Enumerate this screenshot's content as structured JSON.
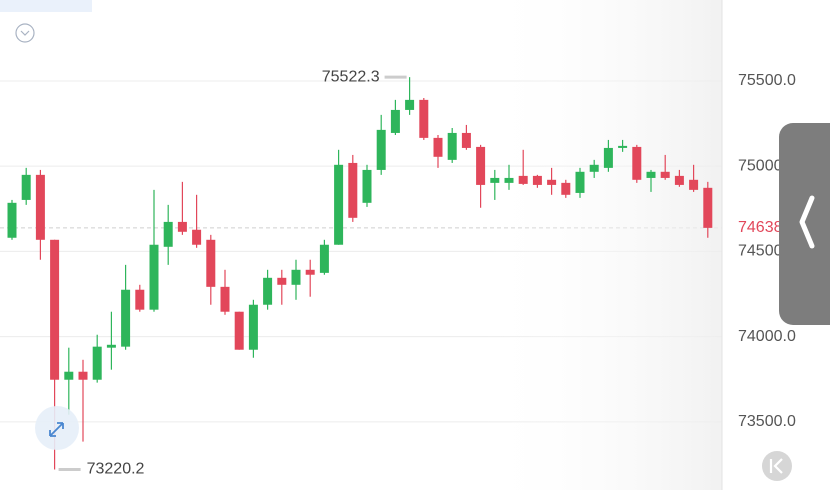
{
  "chart_data": {
    "type": "candlestick",
    "open": [
      74580,
      74802,
      74949,
      74568,
      73747,
      73794,
      73747,
      73935,
      73941,
      74275,
      74158,
      74527,
      74673,
      74627,
      74568,
      74292,
      74146,
      73923,
      74187,
      74345,
      74304,
      74392,
      74374,
      74539,
      75019,
      74785,
      74978,
      75195,
      75330,
      75389,
      75166,
      75037,
      75195,
      75113,
      74902,
      74902,
      74943,
      74943,
      74920,
      74902,
      74843,
      74967,
      74990,
      75107,
      75113,
      74931,
      74967,
      74943,
      74920,
      74873
    ],
    "high": [
      74802,
      74990,
      74978,
      74568,
      73935,
      73864,
      74011,
      74146,
      74421,
      74304,
      74861,
      74773,
      74908,
      74832,
      74597,
      74392,
      74146,
      74216,
      74392,
      74392,
      74451,
      74451,
      74568,
      75096,
      75066,
      75008,
      75301,
      75389,
      75522.3,
      75400,
      75183,
      75224,
      75242,
      75125,
      74978,
      75008,
      75096,
      74949,
      74990,
      74920,
      74990,
      75037,
      75154,
      75154,
      75125,
      74978,
      75066,
      74978,
      75008,
      74908
    ],
    "low": [
      74568,
      74773,
      74451,
      73220.2,
      73542,
      73384,
      73730,
      73806,
      73923,
      74146,
      74146,
      74421,
      74597,
      74521,
      74187,
      74128,
      73923,
      73876,
      74158,
      74187,
      74216,
      74234,
      74363,
      74539,
      74673,
      74761,
      74949,
      75183,
      75301,
      75154,
      74990,
      75019,
      75096,
      74756,
      74802,
      74861,
      74890,
      74873,
      74832,
      74814,
      74814,
      74931,
      74967,
      75084,
      74902,
      74849,
      74920,
      74879,
      74849,
      74580
    ],
    "close": [
      74785,
      74949,
      74568,
      73747,
      73794,
      73747,
      73941,
      73952,
      74275,
      74158,
      74539,
      74673,
      74615,
      74539,
      74292,
      74146,
      73923,
      74187,
      74345,
      74304,
      74392,
      74363,
      74539,
      75008,
      74697,
      74978,
      75213,
      75330,
      75389,
      75166,
      75055,
      75195,
      75107,
      74890,
      74931,
      74931,
      74896,
      74890,
      74890,
      74832,
      74967,
      75008,
      75107,
      75119,
      74920,
      74967,
      74931,
      74890,
      74861,
      74638
    ],
    "up_color": "#2eb55b",
    "down_color": "#e2475a",
    "ylim": [
      73100,
      75975
    ],
    "yticks": [
      {
        "value": 73500,
        "label": "73500.0"
      },
      {
        "value": 74000,
        "label": "74000.0"
      },
      {
        "value": 74500,
        "label": "74500.0"
      },
      {
        "value": 75000,
        "label": "75000.0"
      },
      {
        "value": 75500,
        "label": "75500.0"
      }
    ],
    "grid": true,
    "last_price": 74638
  }
}
